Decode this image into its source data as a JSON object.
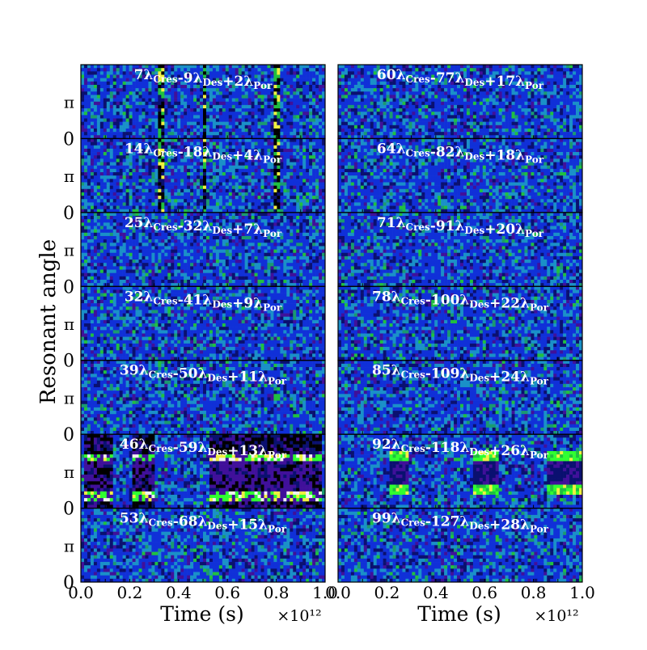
{
  "figure": {
    "ylabel": "Resonant angle",
    "xlabel": "Time (s)",
    "x_offset_label": "×10¹²"
  },
  "colors": {
    "background_blue": "#1030d8",
    "dark_blue": "#0a1070",
    "cyan": "#1a90c8",
    "purple": "#40109a",
    "green": "#20c040",
    "bright_green": "#30ff30",
    "yellow": "#f0f040",
    "white": "#f0f0f0",
    "black": "#000000"
  },
  "chart_data": [
    {
      "type": "heatmap",
      "column": "left",
      "xlabel": "Time (s)",
      "xlim": [
        0.0,
        1.0
      ],
      "x_ticks": [
        "0.0",
        "0.2",
        "0.4",
        "0.6",
        "0.8",
        "1.0"
      ],
      "x_scale_label": "×10¹²",
      "ylabel": "Resonant angle",
      "y_ticks": [
        "0",
        "π"
      ],
      "panels": [
        {
          "label": {
            "c1": "7",
            "c2": "-9",
            "c3": "+2"
          },
          "libration": "none"
        },
        {
          "label": {
            "c1": "14",
            "c2": "-18",
            "c3": "+4"
          },
          "libration": "none"
        },
        {
          "label": {
            "c1": "25",
            "c2": "-32",
            "c3": "+7"
          },
          "libration": "none"
        },
        {
          "label": {
            "c1": "32",
            "c2": "-41",
            "c3": "+9"
          },
          "libration": "none"
        },
        {
          "label": {
            "c1": "39",
            "c2": "-50",
            "c3": "+11"
          },
          "libration": "none"
        },
        {
          "label": {
            "c1": "46",
            "c2": "-59",
            "c3": "+13"
          },
          "libration": "strong"
        },
        {
          "label": {
            "c1": "53",
            "c2": "-68",
            "c3": "+15"
          },
          "libration": "none"
        }
      ]
    },
    {
      "type": "heatmap",
      "column": "right",
      "xlabel": "Time (s)",
      "xlim": [
        0.0,
        1.0
      ],
      "x_ticks": [
        "0.0",
        "0.2",
        "0.4",
        "0.6",
        "0.8",
        "1.0"
      ],
      "x_scale_label": "×10¹²",
      "panels": [
        {
          "label": {
            "c1": "60",
            "c2": "-77",
            "c3": "+17"
          },
          "libration": "none"
        },
        {
          "label": {
            "c1": "64",
            "c2": "-82",
            "c3": "+18"
          },
          "libration": "none"
        },
        {
          "label": {
            "c1": "71",
            "c2": "-91",
            "c3": "+20"
          },
          "libration": "none"
        },
        {
          "label": {
            "c1": "78",
            "c2": "-100",
            "c3": "+22"
          },
          "libration": "none"
        },
        {
          "label": {
            "c1": "85",
            "c2": "-109",
            "c3": "+24"
          },
          "libration": "none"
        },
        {
          "label": {
            "c1": "92",
            "c2": "-118",
            "c3": "+26"
          },
          "libration": "moderate"
        },
        {
          "label": {
            "c1": "99",
            "c2": "-127",
            "c3": "+28"
          },
          "libration": "none"
        }
      ]
    }
  ],
  "term_names": {
    "t1": "Cres",
    "t2": "Des",
    "t3": "Por"
  }
}
